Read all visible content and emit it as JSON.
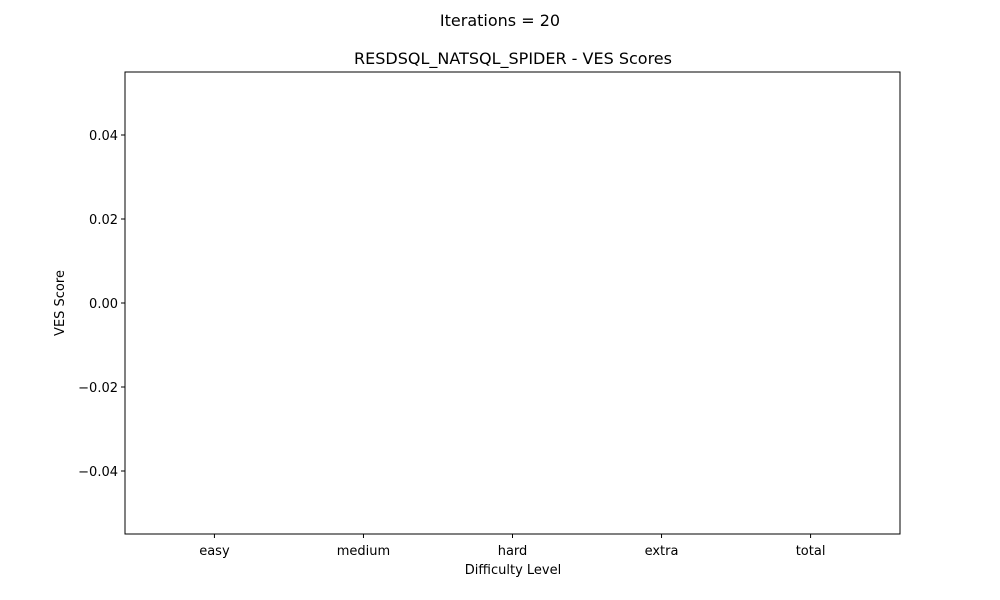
{
  "chart_data": {
    "type": "bar",
    "suptitle": "Iterations = 20",
    "title": "RESDSQL_NATSQL_SPIDER - VES Scores",
    "xlabel": "Difficulty Level",
    "ylabel": "VES Score",
    "categories": [
      "easy",
      "medium",
      "hard",
      "extra",
      "total"
    ],
    "values": [
      0,
      0,
      0,
      0,
      0
    ],
    "ylim": [
      -0.055,
      0.055
    ],
    "yticks": [
      0.04,
      0.02,
      0.0,
      -0.02,
      -0.04
    ],
    "ytick_labels": [
      "0.04",
      "0.02",
      "0.00",
      "−0.02",
      "−0.04"
    ],
    "grid": false,
    "legend": false,
    "bar_color": "#1f77b4"
  }
}
